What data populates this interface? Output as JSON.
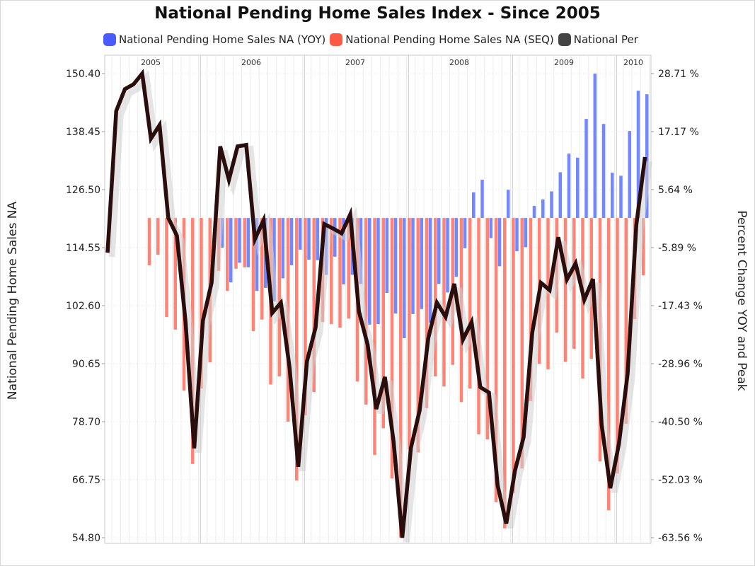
{
  "colors": {
    "yoy": "#5a73ff",
    "seq": "#ff6e5e",
    "line": "#2a0d0d",
    "shadow": "#cfcfcf"
  },
  "chart_data": {
    "type": "bar+line",
    "title": "National Pending Home Sales Index - Since 2005",
    "ylabel_left": "National Pending Home Sales NA",
    "ylabel_right": "Percent Change YOY and Peak",
    "legend_position": "top",
    "legend": [
      "National Pending Home Sales NA (YOY)",
      "National Pending Home Sales NA (SEQ)",
      "National Per"
    ],
    "years": [
      "2005",
      "2006",
      "2007",
      "2008",
      "2009",
      "2010"
    ],
    "left_ticks": [
      "150.40",
      "138.45",
      "126.50",
      "114.55",
      "102.60",
      "90.65",
      "78.70",
      "66.75",
      "54.80"
    ],
    "right_ticks": [
      "28.71 %",
      "17.17 %",
      "5.64 %",
      "-5.89 %",
      "-17.43 %",
      "-28.96 %",
      "-40.50 %",
      "-52.03 %",
      "-63.56 %"
    ],
    "ylim_left": [
      54.8,
      150.4
    ],
    "ylim_right": [
      -63.56,
      28.71
    ],
    "x_start": "2005-02",
    "x_end": "2010-04",
    "grid": true,
    "series": [
      {
        "name": "National Pending Home Sales NA (YOY)",
        "type": "bar",
        "axis": "right",
        "values": [
          null,
          null,
          null,
          null,
          null,
          null,
          null,
          null,
          null,
          null,
          null,
          null,
          null,
          -5.9,
          -12.8,
          -8.9,
          -9.8,
          -14.5,
          -13.9,
          -16.6,
          -12.0,
          -9.4,
          -6.3,
          -8.3,
          -8.4,
          -11.3,
          -7.7,
          -13.2,
          -11.3,
          -13.1,
          -21.2,
          -21.1,
          -14.9,
          -19.0,
          -23.9,
          -19.1,
          -18.1,
          -20.8,
          -13.1,
          -14.8,
          -11.7,
          -6.0,
          5.1,
          7.6,
          -4.0,
          -9.6,
          5.6,
          -6.6,
          -5.8,
          2.4,
          3.7,
          5.3,
          9.1,
          12.8,
          12.0,
          19.7,
          28.7,
          18.7,
          9.0,
          8.4,
          17.3,
          25.3,
          24.6
        ]
      },
      {
        "name": "National Pending Home Sales NA (SEQ)",
        "type": "bar",
        "axis": "right",
        "values": [
          null,
          null,
          null,
          null,
          null,
          -9.4,
          -7.3,
          -19.7,
          -22.2,
          -34.3,
          -48.9,
          -33.9,
          -28.7,
          -10.5,
          -14.5,
          -10.1,
          -9.8,
          -22.5,
          -20.2,
          -33.1,
          -31.5,
          -40.5,
          -52.2,
          -39.2,
          -34.6,
          -20.7,
          -21.1,
          -21.8,
          -20.0,
          -32.5,
          -37.1,
          -47.1,
          -41.8,
          -51.8,
          -63.5,
          -46.0,
          -46.6,
          -37.8,
          -31.5,
          -33.5,
          -29.2,
          -36.6,
          -33.9,
          -43.0,
          -44.0,
          -56.5,
          -61.7,
          -54.7,
          -49.8,
          -36.4,
          -29.0,
          -30.1,
          -22.8,
          -28.6,
          -26.0,
          -31.9,
          -28.0,
          -48.4,
          -58.1,
          -50.8,
          -40.9,
          -20.1,
          -11.4
        ]
      },
      {
        "name": "National Pending Home Sales NA",
        "type": "line",
        "axis": "left",
        "values": [
          113.5,
          142.7,
          147.2,
          148.2,
          150.4,
          137.0,
          139.8,
          120.7,
          117.0,
          99.2,
          73.2,
          99.5,
          107.3,
          135.4,
          128.5,
          135.4,
          135.7,
          116.3,
          120.2,
          101.1,
          103.2,
          89.8,
          69.4,
          91.1,
          98.1,
          119.4,
          118.5,
          117.5,
          121.4,
          101.4,
          94.6,
          81.3,
          87.9,
          74.6,
          54.8,
          73.3,
          81.0,
          95.9,
          103.2,
          100.3,
          107.1,
          95.6,
          99.2,
          85.8,
          84.7,
          65.6,
          57.7,
          68.6,
          75.5,
          97.1,
          107.3,
          105.8,
          116.7,
          108.0,
          111.3,
          103.8,
          108.1,
          78.1,
          65.0,
          74.2,
          88.6,
          119.2,
          133.2
        ]
      }
    ]
  }
}
